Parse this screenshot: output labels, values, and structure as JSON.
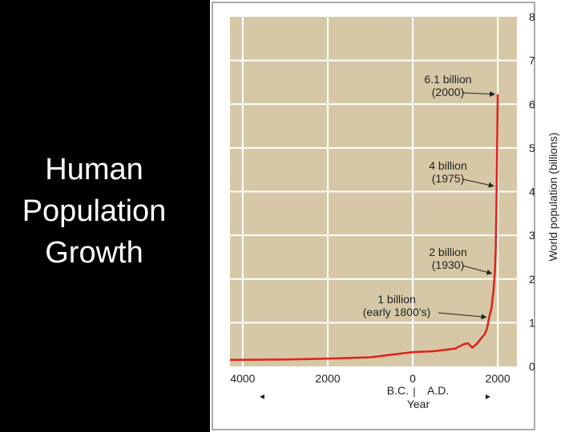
{
  "slide": {
    "title_lines": [
      "Human",
      "Population",
      "Growth"
    ]
  },
  "colors": {
    "background": "#000000",
    "plot_background": "#d6c8a6",
    "grid": "#ffffff",
    "curve": "#e0201c"
  },
  "chart_data": {
    "type": "line",
    "xlabel": "Year",
    "ylabel": "World population (billions)",
    "xlim": [
      -4300,
      2450
    ],
    "ylim": [
      0,
      8
    ],
    "y_ticks": [
      0,
      1,
      2,
      3,
      4,
      5,
      6,
      7,
      8
    ],
    "x_ticks": [
      {
        "value": -4000,
        "label": "4000"
      },
      {
        "value": -2000,
        "label": "2000"
      },
      {
        "value": 0,
        "label": "0"
      },
      {
        "value": 2000,
        "label": "2000"
      }
    ],
    "era_labels": {
      "bc": "B.C.",
      "ad": "A.D.",
      "divider": "|"
    },
    "grid": true,
    "series": [
      {
        "x": [
          -4300,
          -3000,
          -2000,
          -1000,
          0,
          500,
          1000,
          1200,
          1300,
          1350,
          1400,
          1500,
          1600,
          1700,
          1750,
          1800,
          1850,
          1900,
          1930,
          1950,
          1960,
          1975,
          1990,
          2000
        ],
        "y": [
          0.02,
          0.03,
          0.05,
          0.08,
          0.2,
          0.22,
          0.28,
          0.38,
          0.4,
          0.35,
          0.3,
          0.38,
          0.5,
          0.62,
          0.75,
          1.0,
          1.2,
          1.6,
          2.0,
          2.5,
          3.0,
          4.0,
          5.3,
          6.1
        ]
      }
    ],
    "annotations": [
      {
        "lines": [
          "6.1 billion",
          "(2000)"
        ],
        "x": 2000,
        "y": 6.1
      },
      {
        "lines": [
          "4 billion",
          "(1975)"
        ],
        "x": 1975,
        "y": 4.0
      },
      {
        "lines": [
          "2 billion",
          "(1930)"
        ],
        "x": 1930,
        "y": 2.0
      },
      {
        "lines": [
          "1 billion",
          "(early 1800’s)"
        ],
        "x": 1800,
        "y": 1.0
      }
    ]
  }
}
